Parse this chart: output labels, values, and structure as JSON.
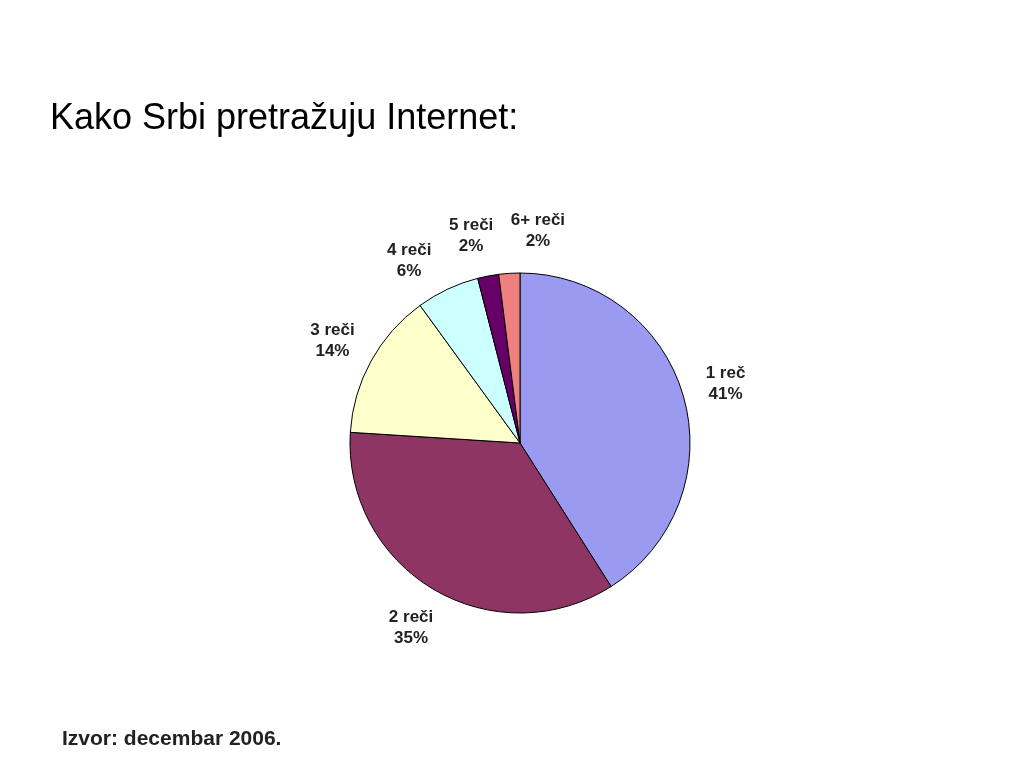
{
  "chart_data": {
    "type": "pie",
    "title": "Kako Srbi pretražuju Internet:",
    "categories": [
      "1 reč",
      "2 reči",
      "3 reči",
      "4 reči",
      "5 reči",
      "6+ reči"
    ],
    "values": [
      41,
      35,
      14,
      6,
      2,
      2
    ],
    "colors": [
      "#9a9af0",
      "#8f3563",
      "#ffffcc",
      "#ccffff",
      "#660066",
      "#f08080"
    ],
    "value_labels": [
      "41%",
      "35%",
      "14%",
      "6%",
      "2%",
      "2%"
    ],
    "annotations": [
      "Izvor: decembar 2006."
    ]
  }
}
